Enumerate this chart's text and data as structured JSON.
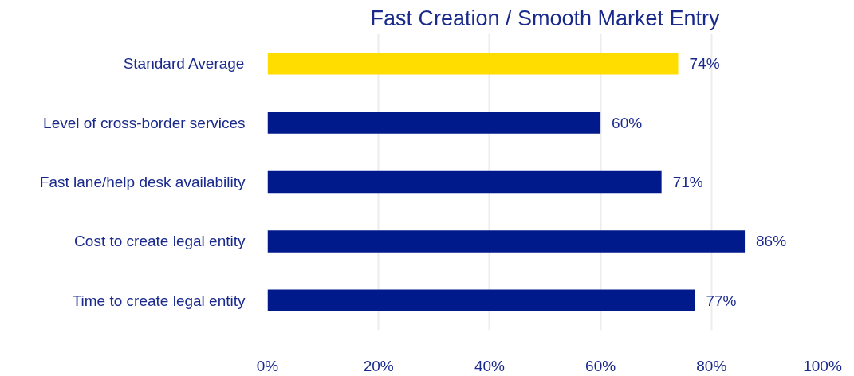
{
  "chart_data": {
    "type": "bar",
    "orientation": "horizontal",
    "title": "Fast Creation / Smooth Market Entry",
    "categories": [
      "Standard Average",
      "Level of cross-border services",
      "Fast lane/help desk availability",
      "Cost to create legal entity",
      "Time to create legal entity"
    ],
    "values": [
      74,
      60,
      71,
      86,
      77
    ],
    "colors": [
      "#ffdd00",
      "#001a8c",
      "#001a8c",
      "#001a8c",
      "#001a8c"
    ],
    "value_labels": [
      "74%",
      "60%",
      "71%",
      "86%",
      "77%"
    ],
    "xlim": [
      0,
      100
    ],
    "xticks": [
      {
        "value": 0,
        "label": "0%"
      },
      {
        "value": 20,
        "label": "20%"
      },
      {
        "value": 40,
        "label": "40%"
      },
      {
        "value": 60,
        "label": "60%"
      },
      {
        "value": 80,
        "label": "80%"
      },
      {
        "value": 100,
        "label": "100%"
      }
    ],
    "grid": "x"
  }
}
